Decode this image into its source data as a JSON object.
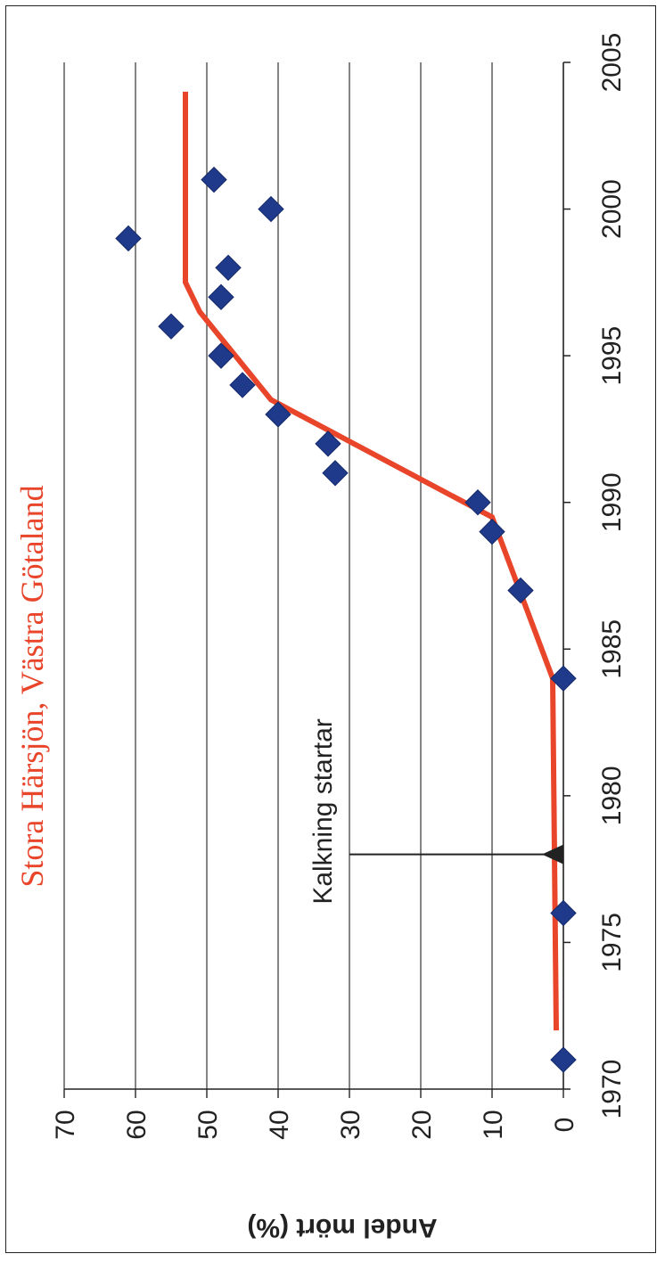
{
  "chart_data": {
    "type": "scatter",
    "title": "Stora Härsjön, Västra Götaland",
    "ylabel": "Andel mört (%)",
    "xlabel": "",
    "xlim": [
      1970,
      2005
    ],
    "ylim": [
      0,
      70
    ],
    "x_ticks": [
      1970,
      1975,
      1980,
      1985,
      1990,
      1995,
      2000,
      2005
    ],
    "y_ticks": [
      0,
      10,
      20,
      30,
      40,
      50,
      60,
      70
    ],
    "grid": "horizontal",
    "series": [
      {
        "type": "scatter",
        "marker": "diamond",
        "color": "#1f3a8a",
        "x": [
          1971,
          1976,
          1984,
          1987,
          1989,
          1990,
          1991,
          1992,
          1993,
          1994,
          1995,
          1996,
          1997,
          1998,
          1999,
          2000,
          2001
        ],
        "y": [
          0,
          0,
          0,
          6,
          10,
          12,
          32,
          33,
          40,
          45,
          48,
          55,
          48,
          47,
          61,
          41,
          49
        ]
      },
      {
        "type": "line",
        "color": "#e8452a",
        "x": [
          1972,
          1984,
          1989.5,
          1993.5,
          1996.5,
          1997.5,
          2004
        ],
        "y": [
          1,
          1.5,
          10,
          41,
          51,
          53,
          53
        ]
      }
    ],
    "annotations": [
      {
        "text": "Kalkning startar",
        "x": 1978,
        "y_from": 30,
        "y_to": 3
      }
    ]
  }
}
